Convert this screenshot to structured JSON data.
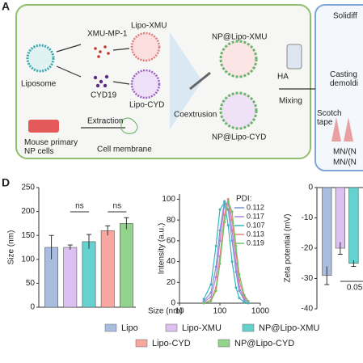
{
  "panel_a": {
    "label": "A",
    "texts": {
      "xmu": "XMU-MP-1",
      "lipo_xmu": "Lipo-XMU",
      "liposome": "Liposome",
      "cyd": "CYD19",
      "lipo_cyd": "Lipo-CYD",
      "np_xmu": "NP@Lipo-XMU",
      "coextrusion": "Coextrusion",
      "np_cyd": "NP@Lipo-CYD",
      "extraction": "Extraction",
      "cells": "Mouse primary\nNP cells",
      "membrane": "Cell membrane",
      "ha": "HA",
      "mixing": "Mixing",
      "solid": "Solidiff",
      "casting": "Casting\ndemoldi",
      "tape": "Scotch\ntape",
      "mn1": "MN/(N",
      "mn2": "MN/(N"
    }
  },
  "panel_d_label": "D",
  "chart_data": [
    {
      "type": "bar",
      "ylabel": "Size (nm)",
      "categories": [
        "Lipo",
        "Lipo-XMU",
        "NP@Lipo-XMU",
        "Lipo-CYD",
        "NP@Lipo-CYD"
      ],
      "values": [
        125,
        125,
        137,
        160,
        175
      ],
      "errors": [
        25,
        5,
        15,
        10,
        12
      ],
      "colors": [
        "#a9bde0",
        "#dcc0f2",
        "#66d2cf",
        "#f5a7a0",
        "#93d48c"
      ],
      "ylim": [
        0,
        250
      ],
      "yticks": [
        0,
        50,
        100,
        150,
        200,
        250
      ],
      "annotations": [
        "ns",
        "ns"
      ]
    },
    {
      "type": "line",
      "xlabel": "Size (nm)",
      "ylabel": "Intensity (a.u.)",
      "legend_title": "PDI:",
      "log_x": true,
      "x": [
        40,
        60,
        80,
        100,
        130,
        160,
        200,
        250,
        300,
        400,
        500
      ],
      "series": [
        {
          "name": "0.112",
          "color": "#7b93cf",
          "values": [
            2,
            10,
            35,
            70,
            98,
            90,
            60,
            30,
            12,
            3,
            1
          ]
        },
        {
          "name": "0.117",
          "color": "#b083e0",
          "values": [
            1,
            6,
            25,
            60,
            95,
            97,
            70,
            38,
            16,
            4,
            1
          ]
        },
        {
          "name": "0.107",
          "color": "#35b8b5",
          "values": [
            4,
            18,
            55,
            90,
            97,
            75,
            40,
            15,
            5,
            1,
            0
          ]
        },
        {
          "name": "0.113",
          "color": "#ee7f77",
          "values": [
            0,
            3,
            15,
            45,
            85,
            100,
            80,
            48,
            22,
            6,
            2
          ]
        },
        {
          "name": "0.119",
          "color": "#6cc466",
          "values": [
            0,
            2,
            12,
            38,
            78,
            98,
            88,
            55,
            28,
            8,
            2
          ]
        }
      ],
      "xlim": [
        10,
        1000
      ],
      "xticks": [
        10,
        100,
        1000
      ],
      "ylim": [
        0,
        105
      ],
      "yticks": [
        0,
        20,
        40,
        60,
        80,
        100
      ]
    },
    {
      "type": "bar",
      "ylabel": "Zeta potential (mV)",
      "categories": [
        null,
        null,
        null
      ],
      "values": [
        -29,
        -20,
        -25
      ],
      "errors": [
        3,
        2,
        1
      ],
      "colors": [
        "#a9bde0",
        "#dcc0f2",
        "#66d2cf"
      ],
      "ylim": [
        -40,
        0
      ],
      "yticks": [
        -40,
        -30,
        -20,
        -10,
        0
      ],
      "annotations": [
        "0.0550"
      ]
    }
  ]
}
